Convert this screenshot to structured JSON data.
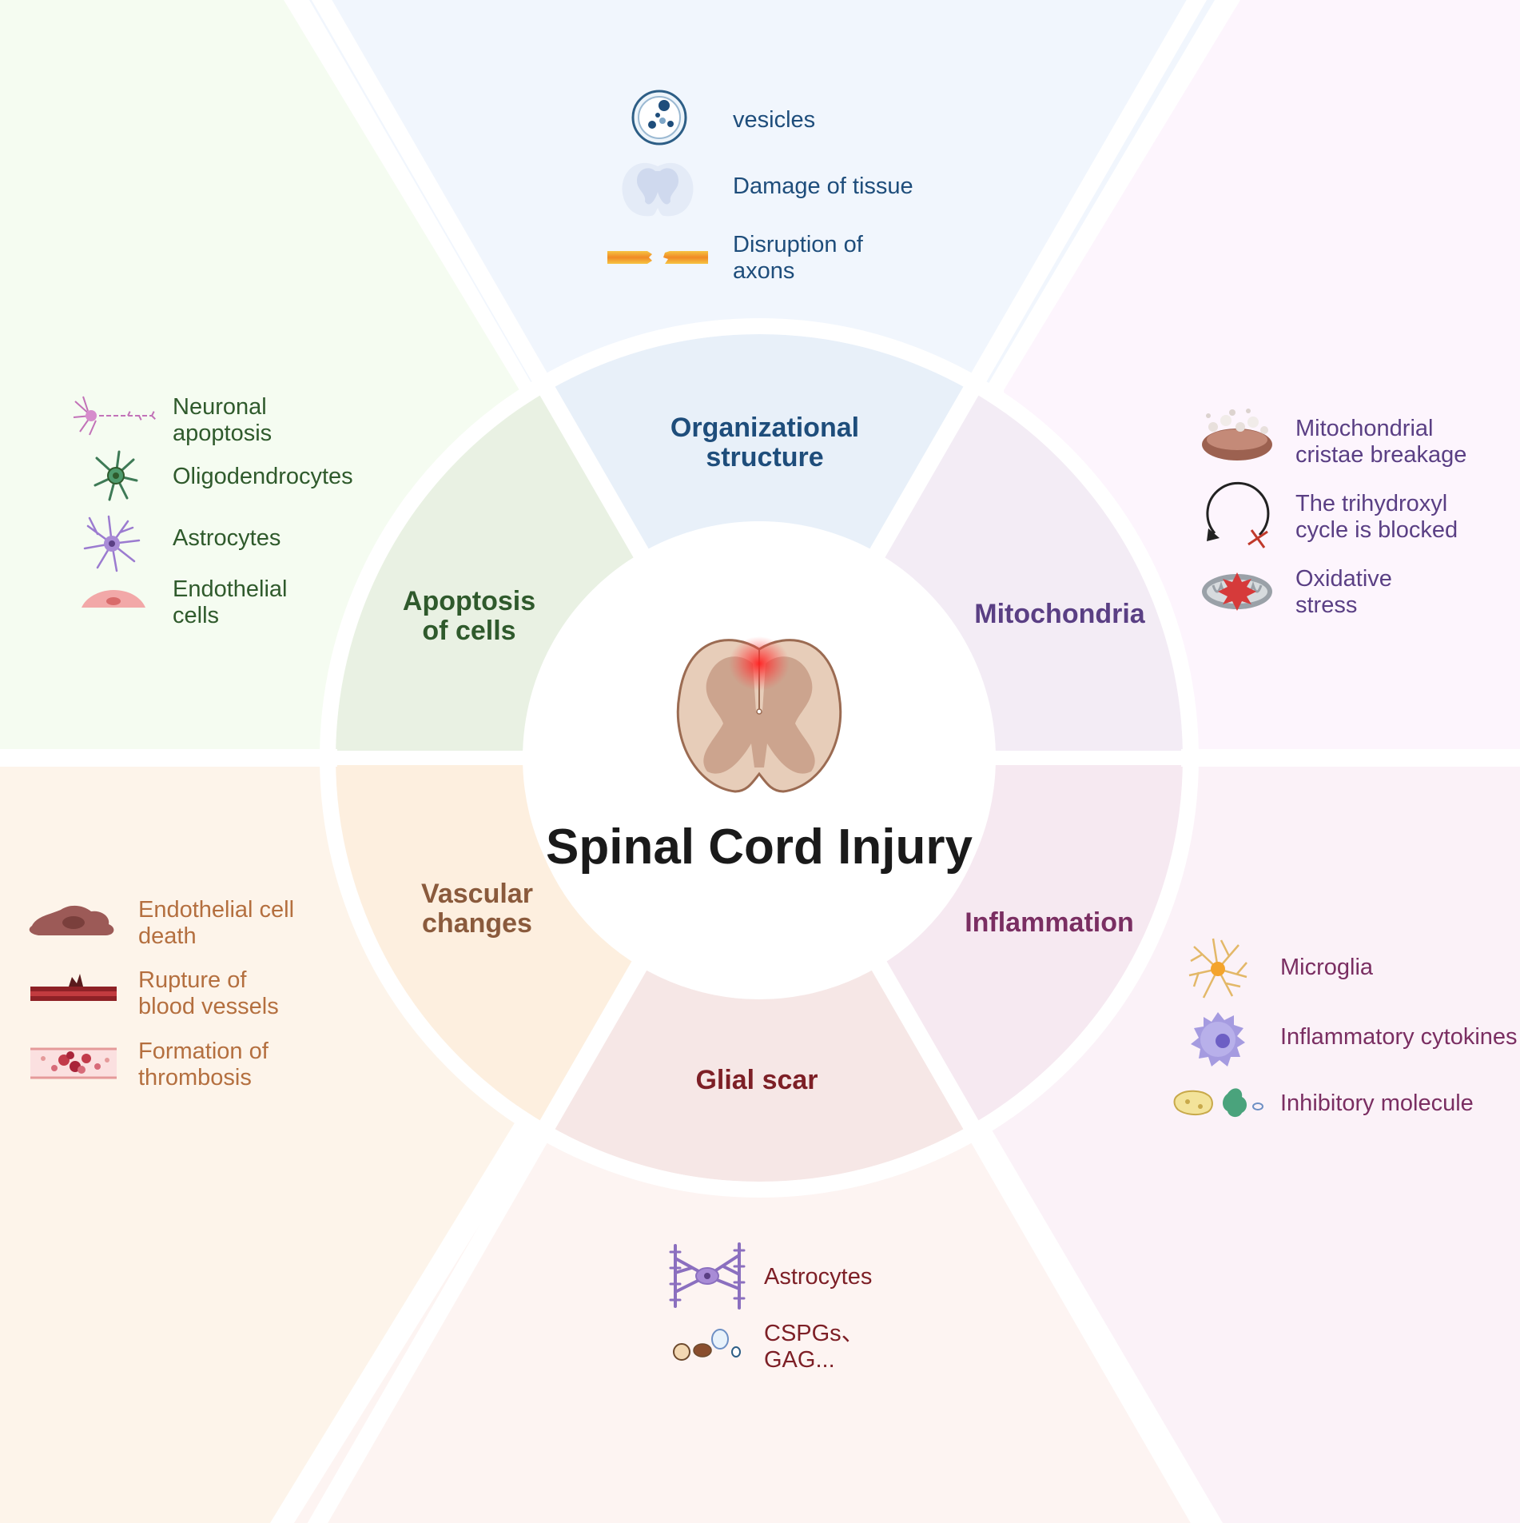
{
  "title": "Spinal Cord Injury",
  "colors": {
    "organizational": "#1e4d7b",
    "mitochondria": "#5a3f84",
    "inflammation": "#7a2e62",
    "glial": "#7d1f26",
    "vascular": "#b46f3f",
    "vascular_label": "#8a5a3c",
    "apoptosis": "#2f5a2c"
  },
  "segments": {
    "organizational": {
      "label_lines": [
        "Organizational",
        "structure"
      ],
      "items": [
        {
          "icon": "vesicle-icon",
          "lines": [
            "vesicles"
          ]
        },
        {
          "icon": "tissue-damage-icon",
          "lines": [
            "Damage of tissue"
          ]
        },
        {
          "icon": "axon-disruption-icon",
          "lines": [
            "Disruption of",
            "axons"
          ]
        }
      ]
    },
    "mitochondria": {
      "label_lines": [
        "Mitochondria"
      ],
      "items": [
        {
          "icon": "broken-mitochondrion-icon",
          "lines": [
            "Mitochondrial",
            "cristae breakage"
          ]
        },
        {
          "icon": "blocked-cycle-icon",
          "lines": [
            "The trihydroxyl",
            "cycle is blocked"
          ]
        },
        {
          "icon": "ros-mitochondrion-icon",
          "lines": [
            "Oxidative",
            "stress"
          ]
        }
      ]
    },
    "inflammation": {
      "label_lines": [
        "Inflammation"
      ],
      "items": [
        {
          "icon": "microglia-icon",
          "lines": [
            "Microglia"
          ]
        },
        {
          "icon": "cytokine-cell-icon",
          "lines": [
            "Inflammatory cytokines"
          ]
        },
        {
          "icon": "inhibitory-molecule-icon",
          "lines": [
            "Inhibitory molecule"
          ]
        }
      ]
    },
    "glial": {
      "label_lines": [
        "Glial scar"
      ],
      "items": [
        {
          "icon": "scar-astrocyte-icon",
          "lines": [
            "Astrocytes"
          ]
        },
        {
          "icon": "cspg-molecule-icon",
          "lines": [
            "CSPGs、",
            "GAG..."
          ]
        }
      ]
    },
    "vascular": {
      "label_lines": [
        "Vascular",
        "changes"
      ],
      "items": [
        {
          "icon": "dead-endothelial-cell-icon",
          "lines": [
            "Endothelial cell",
            "death"
          ]
        },
        {
          "icon": "ruptured-vessel-icon",
          "lines": [
            "Rupture of",
            "blood vessels"
          ]
        },
        {
          "icon": "thrombosis-icon",
          "lines": [
            "Formation of",
            "thrombosis"
          ]
        }
      ]
    },
    "apoptosis": {
      "label_lines": [
        "Apoptosis",
        "of cells"
      ],
      "items": [
        {
          "icon": "neuron-icon",
          "lines": [
            "Neuronal",
            "apoptosis"
          ]
        },
        {
          "icon": "oligodendrocyte-icon",
          "lines": [
            "Oligodendrocytes"
          ]
        },
        {
          "icon": "astrocyte-icon",
          "lines": [
            "Astrocytes"
          ]
        },
        {
          "icon": "endothelial-cell-icon",
          "lines": [
            "Endothelial",
            "cells"
          ]
        }
      ]
    }
  }
}
